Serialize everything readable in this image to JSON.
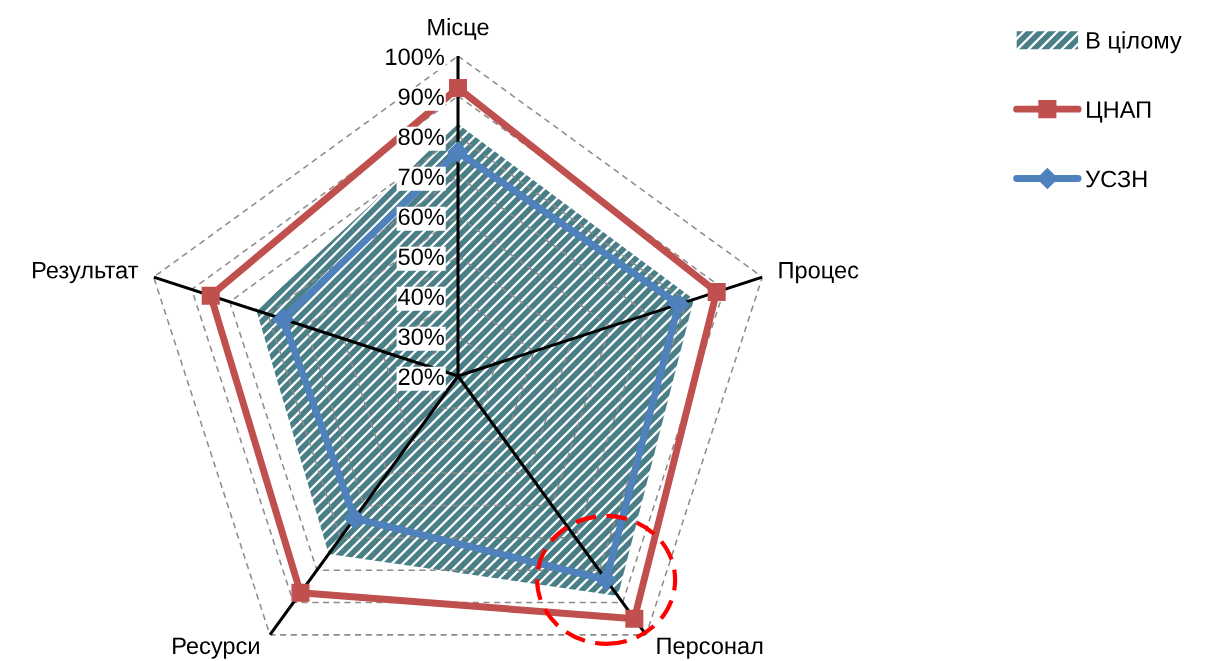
{
  "chart_data": {
    "type": "radar",
    "categories": [
      "Місце",
      "Процес",
      "Персонал",
      "Ресурси",
      "Результат"
    ],
    "series": [
      {
        "name": "В цілому",
        "type": "area",
        "color": "#4a7f87",
        "values": [
          83,
          82,
          88,
          75,
          73
        ]
      },
      {
        "name": "ЦНАП",
        "marker": "square",
        "color": "#c0504d",
        "values": [
          92,
          88,
          95,
          87,
          85
        ]
      },
      {
        "name": "УСЗН",
        "marker": "diamond",
        "color": "#4f81bd",
        "values": [
          76,
          78,
          83,
          64,
          66
        ]
      }
    ],
    "ylim": [
      20,
      100
    ],
    "yticks": [
      {
        "value": 20,
        "label": "20%"
      },
      {
        "value": 30,
        "label": "30%"
      },
      {
        "value": 40,
        "label": "40%"
      },
      {
        "value": 50,
        "label": "50%"
      },
      {
        "value": 60,
        "label": "60%"
      },
      {
        "value": 70,
        "label": "70%"
      },
      {
        "value": 80,
        "label": "80%"
      },
      {
        "value": 90,
        "label": "90%"
      },
      {
        "value": 100,
        "label": "100%"
      }
    ],
    "grid": true,
    "legend": "top right",
    "line_style": "solid"
  }
}
